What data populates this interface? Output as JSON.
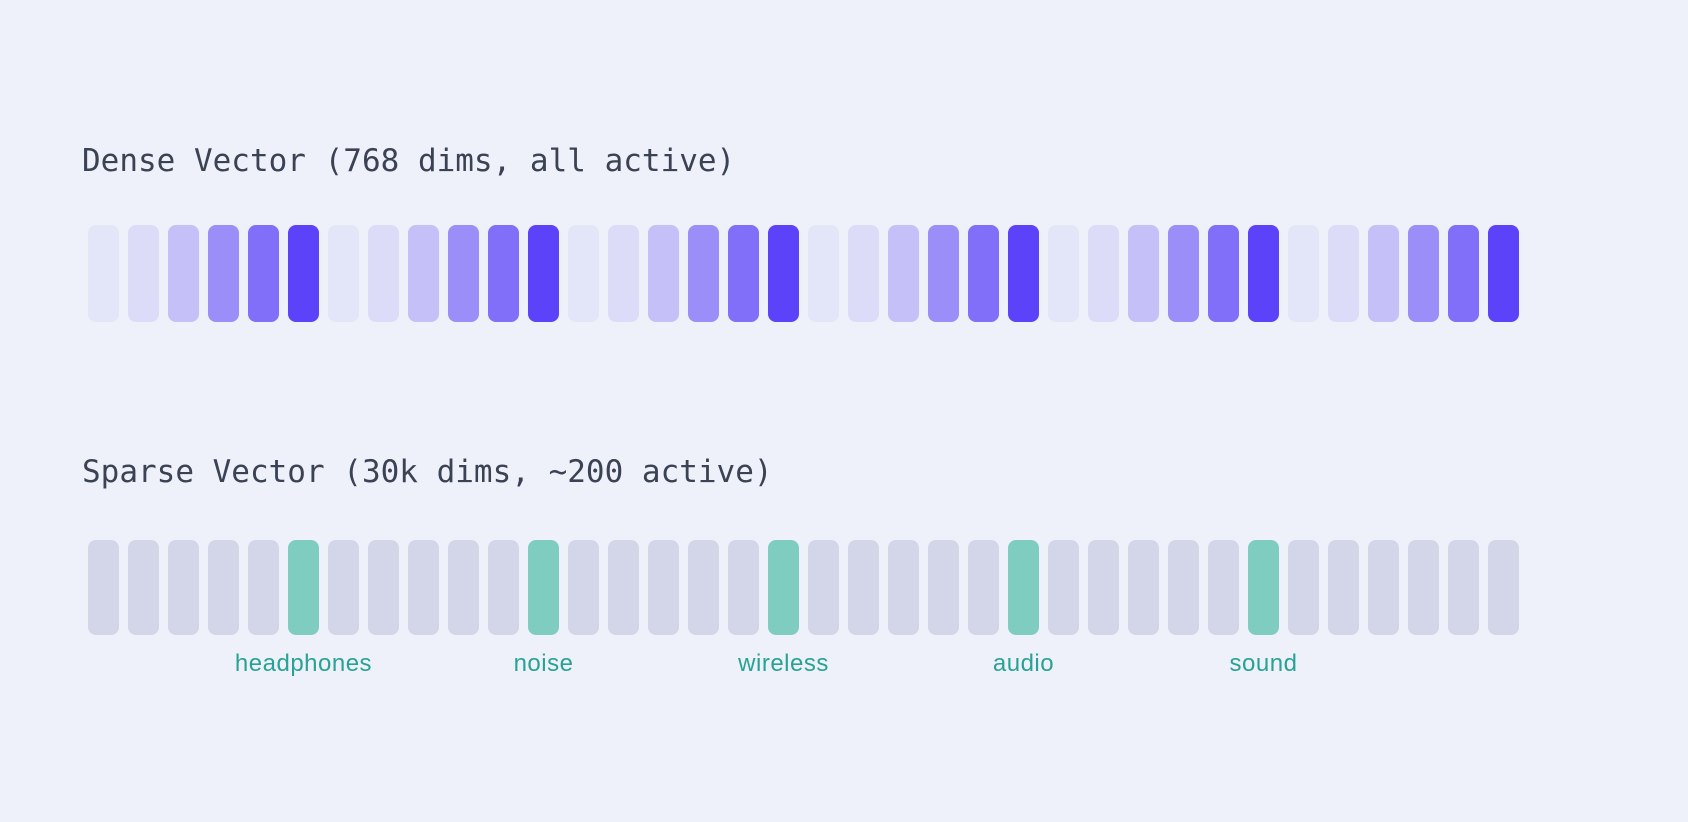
{
  "page": {
    "background": "#eef1f9",
    "title_color": "#3b4254"
  },
  "dense": {
    "title": "Dense Vector (768 dims, all active)",
    "base_color": "#5c42f8",
    "bar_count": 36,
    "values": [
      0.07,
      0.12,
      0.28,
      0.57,
      0.75,
      1,
      0.07,
      0.12,
      0.28,
      0.57,
      0.75,
      1,
      0.07,
      0.12,
      0.28,
      0.57,
      0.75,
      1,
      0.07,
      0.12,
      0.28,
      0.57,
      0.75,
      1,
      0.07,
      0.12,
      0.28,
      0.57,
      0.75,
      1,
      0.07,
      0.12,
      0.28,
      0.57,
      0.75,
      1
    ]
  },
  "sparse": {
    "title": "Sparse Vector (30k dims, ~200 active)",
    "inactive_color": "#d2d6e8",
    "active_color": "#7fccc0",
    "label_color": "#29a296",
    "bar_count": 36,
    "active": [
      {
        "index": 5,
        "label": "headphones"
      },
      {
        "index": 11,
        "label": "noise"
      },
      {
        "index": 17,
        "label": "wireless"
      },
      {
        "index": 23,
        "label": "audio"
      },
      {
        "index": 29,
        "label": "sound"
      }
    ]
  }
}
